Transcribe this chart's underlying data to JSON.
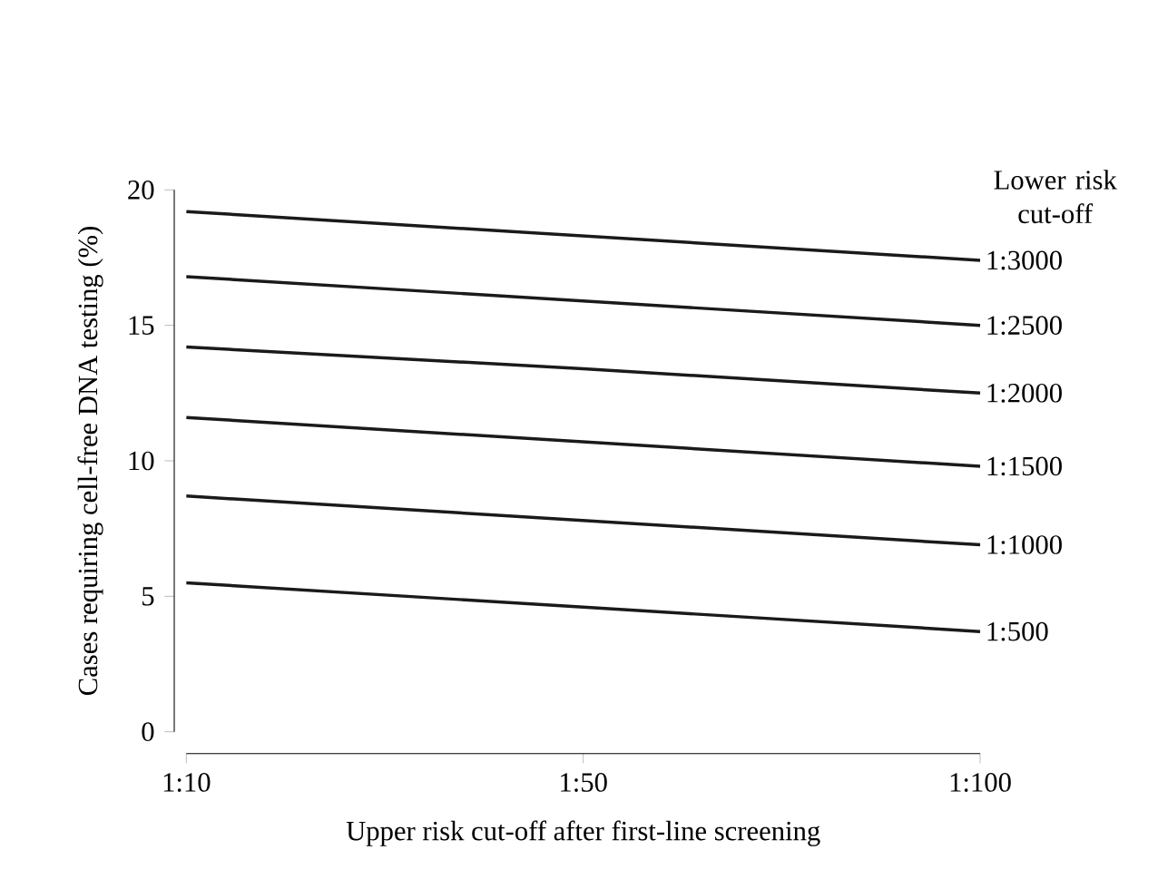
{
  "chart_data": {
    "type": "line",
    "xlabel": "Upper risk cut-off after first-line screening",
    "ylabel": "Cases requiring cell-free DNA testing (%)",
    "legend_title": "Lower risk cut-off",
    "categories": [
      "1:10",
      "1:50",
      "1:100"
    ],
    "ylim": [
      0,
      20
    ],
    "yticks": [
      0,
      5,
      10,
      15,
      20
    ],
    "series": [
      {
        "name": "1:3000",
        "color": "#1a1a1a",
        "values": [
          19.2,
          18.3,
          17.4
        ]
      },
      {
        "name": "1:2500",
        "color": "#1a1a1a",
        "values": [
          16.8,
          15.9,
          15.0
        ]
      },
      {
        "name": "1:2000",
        "color": "#1a1a1a",
        "values": [
          14.2,
          13.4,
          12.5
        ]
      },
      {
        "name": "1:1500",
        "color": "#1a1a1a",
        "values": [
          11.6,
          10.7,
          9.8
        ]
      },
      {
        "name": "1:1000",
        "color": "#1a1a1a",
        "values": [
          8.7,
          7.8,
          6.9
        ]
      },
      {
        "name": "1:500",
        "color": "#1a1a1a",
        "values": [
          5.5,
          4.6,
          3.7
        ]
      }
    ]
  }
}
